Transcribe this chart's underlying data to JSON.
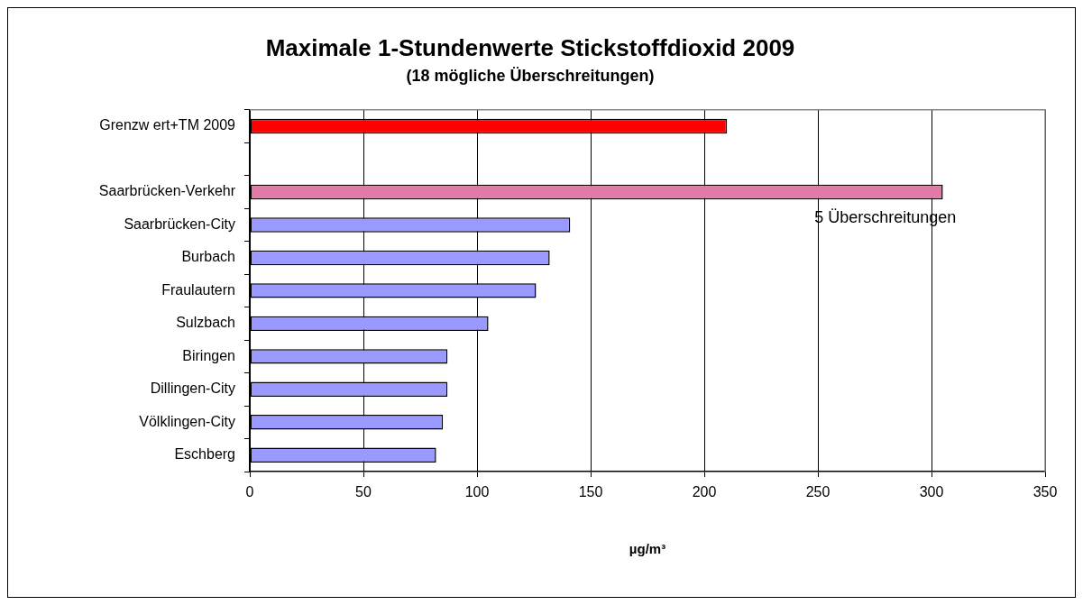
{
  "chart_data": {
    "type": "bar",
    "orientation": "horizontal",
    "title": "Maximale 1-Stundenwerte Stickstoffdioxid 2009",
    "subtitle": "(18 mögliche Überschreitungen)",
    "xlabel": "µg/m³",
    "categories": [
      "Grenzw ert+TM 2009",
      null,
      "Saarbrücken-Verkehr",
      "Saarbrücken-City",
      "Burbach",
      "Fraulautern",
      "Sulzbach",
      "Biringen",
      "Dillingen-City",
      "Völklingen-City",
      "Eschberg"
    ],
    "values": [
      210,
      null,
      305,
      141,
      132,
      126,
      105,
      87,
      87,
      85,
      82
    ],
    "colors": [
      "#ff0000",
      "#ffffff",
      "#e07aa6",
      "#9999ff",
      "#9999ff",
      "#9999ff",
      "#9999ff",
      "#9999ff",
      "#9999ff",
      "#9999ff",
      "#9999ff"
    ],
    "xlim": [
      0,
      350
    ],
    "xticks": [
      0,
      50,
      100,
      150,
      200,
      250,
      300,
      350
    ],
    "grid": "x",
    "legend": false,
    "annotations": [
      "5 Überschreitungen"
    ]
  }
}
